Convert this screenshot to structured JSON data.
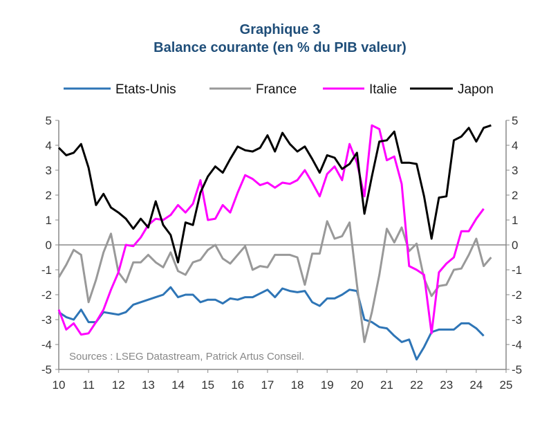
{
  "chart_data": {
    "type": "line",
    "title": "Graphique 3",
    "subtitle": "Balance courante (en % du PIB valeur)",
    "source": "Sources : LSEG Datastream, Patrick Artus Conseil.",
    "x_ticks": [
      "10",
      "11",
      "12",
      "13",
      "14",
      "15",
      "16",
      "17",
      "18",
      "19",
      "20",
      "21",
      "22",
      "23",
      "24",
      "25"
    ],
    "y_ticks": [
      "5",
      "4",
      "3",
      "2",
      "1",
      "0",
      "-1",
      "-2",
      "-3",
      "-4",
      "-5"
    ],
    "xlim": [
      10,
      25
    ],
    "ylim": [
      -5,
      5
    ],
    "legend_placement": "top",
    "grid": false,
    "series": [
      {
        "name": "Etats-Unis",
        "color": "#2e75b6",
        "x": [
          10.0,
          10.25,
          10.5,
          10.75,
          11.0,
          11.25,
          11.5,
          11.75,
          12.0,
          12.25,
          12.5,
          12.75,
          13.0,
          13.25,
          13.5,
          13.75,
          14.0,
          14.25,
          14.5,
          14.75,
          15.0,
          15.25,
          15.5,
          15.75,
          16.0,
          16.25,
          16.5,
          16.75,
          17.0,
          17.25,
          17.5,
          17.75,
          18.0,
          18.25,
          18.5,
          18.75,
          19.0,
          19.25,
          19.5,
          19.75,
          20.0,
          20.25,
          20.5,
          20.75,
          21.0,
          21.25,
          21.5,
          21.75,
          22.0,
          22.25,
          22.5,
          22.75,
          23.0,
          23.25,
          23.5,
          23.75,
          24.0,
          24.25
        ],
        "values": [
          -2.7,
          -2.9,
          -3.0,
          -2.6,
          -3.1,
          -3.1,
          -2.7,
          -2.75,
          -2.8,
          -2.7,
          -2.4,
          -2.3,
          -2.2,
          -2.1,
          -2.0,
          -1.7,
          -2.1,
          -2.0,
          -2.0,
          -2.3,
          -2.2,
          -2.2,
          -2.35,
          -2.15,
          -2.2,
          -2.1,
          -2.1,
          -1.95,
          -1.8,
          -2.1,
          -1.75,
          -1.85,
          -1.9,
          -1.85,
          -2.3,
          -2.45,
          -2.15,
          -2.15,
          -2.0,
          -1.8,
          -1.85,
          -3.0,
          -3.1,
          -3.3,
          -3.35,
          -3.65,
          -3.9,
          -3.8,
          -4.6,
          -4.1,
          -3.5,
          -3.4,
          -3.4,
          -3.4,
          -3.15,
          -3.15,
          -3.35,
          -3.65
        ]
      },
      {
        "name": "France",
        "color": "#999999",
        "x": [
          10.0,
          10.25,
          10.5,
          10.75,
          11.0,
          11.25,
          11.5,
          11.75,
          12.0,
          12.25,
          12.5,
          12.75,
          13.0,
          13.25,
          13.5,
          13.75,
          14.0,
          14.25,
          14.5,
          14.75,
          15.0,
          15.25,
          15.5,
          15.75,
          16.0,
          16.25,
          16.5,
          16.75,
          17.0,
          17.25,
          17.5,
          17.75,
          18.0,
          18.25,
          18.5,
          18.75,
          19.0,
          19.25,
          19.5,
          19.75,
          20.0,
          20.25,
          20.5,
          20.75,
          21.0,
          21.25,
          21.5,
          21.75,
          22.0,
          22.25,
          22.5,
          22.75,
          23.0,
          23.25,
          23.5,
          23.75,
          24.0,
          24.25,
          24.5
        ],
        "values": [
          -1.3,
          -0.8,
          -0.2,
          -0.4,
          -2.3,
          -1.4,
          -0.3,
          0.45,
          -1.1,
          -1.5,
          -0.7,
          -0.7,
          -0.4,
          -0.7,
          -0.9,
          -0.3,
          -1.05,
          -1.2,
          -0.7,
          -0.6,
          -0.2,
          0.0,
          -0.55,
          -0.75,
          -0.4,
          -0.05,
          -1.0,
          -0.85,
          -0.9,
          -0.4,
          -0.4,
          -0.4,
          -0.5,
          -1.6,
          -0.35,
          -0.35,
          0.95,
          0.25,
          0.35,
          0.9,
          -1.6,
          -3.9,
          -2.7,
          -1.2,
          0.65,
          0.1,
          0.7,
          -0.25,
          0.05,
          -1.35,
          -2.05,
          -1.65,
          -1.6,
          -1.0,
          -0.95,
          -0.4,
          0.25,
          -0.85,
          -0.5
        ]
      },
      {
        "name": "Italie",
        "color": "#ff00ff",
        "x": [
          10.0,
          10.25,
          10.5,
          10.75,
          11.0,
          11.25,
          11.5,
          11.75,
          12.0,
          12.25,
          12.5,
          12.75,
          13.0,
          13.25,
          13.5,
          13.75,
          14.0,
          14.25,
          14.5,
          14.75,
          15.0,
          15.25,
          15.5,
          15.75,
          16.0,
          16.25,
          16.5,
          16.75,
          17.0,
          17.25,
          17.5,
          17.75,
          18.0,
          18.25,
          18.5,
          18.75,
          19.0,
          19.25,
          19.5,
          19.75,
          20.0,
          20.25,
          20.5,
          20.75,
          21.0,
          21.25,
          21.5,
          21.75,
          22.0,
          22.25,
          22.5,
          22.75,
          23.0,
          23.25,
          23.5,
          23.75,
          24.0,
          24.25
        ],
        "values": [
          -2.6,
          -3.4,
          -3.15,
          -3.6,
          -3.55,
          -3.1,
          -2.6,
          -1.8,
          -1.1,
          0.0,
          -0.05,
          0.3,
          0.8,
          1.05,
          1.0,
          1.2,
          1.6,
          1.3,
          1.65,
          2.6,
          1.0,
          1.05,
          1.6,
          1.3,
          2.1,
          2.8,
          2.65,
          2.4,
          2.5,
          2.3,
          2.5,
          2.45,
          2.6,
          3.0,
          2.5,
          1.95,
          2.85,
          3.15,
          2.6,
          4.05,
          3.3,
          1.95,
          4.8,
          4.65,
          3.4,
          3.55,
          2.45,
          -0.85,
          -1.0,
          -1.2,
          -3.55,
          -1.1,
          -0.75,
          -0.5,
          0.55,
          0.55,
          1.05,
          1.45
        ]
      },
      {
        "name": "Japon",
        "color": "#000000",
        "x": [
          10.0,
          10.25,
          10.5,
          10.75,
          11.0,
          11.25,
          11.5,
          11.75,
          12.0,
          12.25,
          12.5,
          12.75,
          13.0,
          13.25,
          13.5,
          13.75,
          14.0,
          14.25,
          14.5,
          14.75,
          15.0,
          15.25,
          15.5,
          15.75,
          16.0,
          16.25,
          16.5,
          16.75,
          17.0,
          17.25,
          17.5,
          17.75,
          18.0,
          18.25,
          18.5,
          18.75,
          19.0,
          19.25,
          19.5,
          19.75,
          20.0,
          20.25,
          20.5,
          20.75,
          21.0,
          21.25,
          21.5,
          21.75,
          22.0,
          22.25,
          22.5,
          22.75,
          23.0,
          23.25,
          23.5,
          23.75,
          24.0,
          24.25,
          24.5
        ],
        "values": [
          3.9,
          3.6,
          3.7,
          4.05,
          3.1,
          1.6,
          2.05,
          1.5,
          1.3,
          1.05,
          0.65,
          1.05,
          0.7,
          1.75,
          0.8,
          0.4,
          -0.7,
          0.9,
          0.8,
          2.1,
          2.75,
          3.15,
          2.9,
          3.45,
          3.95,
          3.8,
          3.75,
          3.9,
          4.4,
          3.75,
          4.5,
          4.05,
          3.75,
          3.95,
          3.45,
          2.9,
          3.6,
          3.5,
          3.05,
          3.25,
          3.7,
          1.25,
          2.75,
          4.15,
          4.2,
          4.55,
          3.3,
          3.3,
          3.25,
          1.95,
          0.25,
          1.9,
          1.95,
          4.2,
          4.35,
          4.7,
          4.15,
          4.7,
          4.8
        ]
      }
    ]
  }
}
